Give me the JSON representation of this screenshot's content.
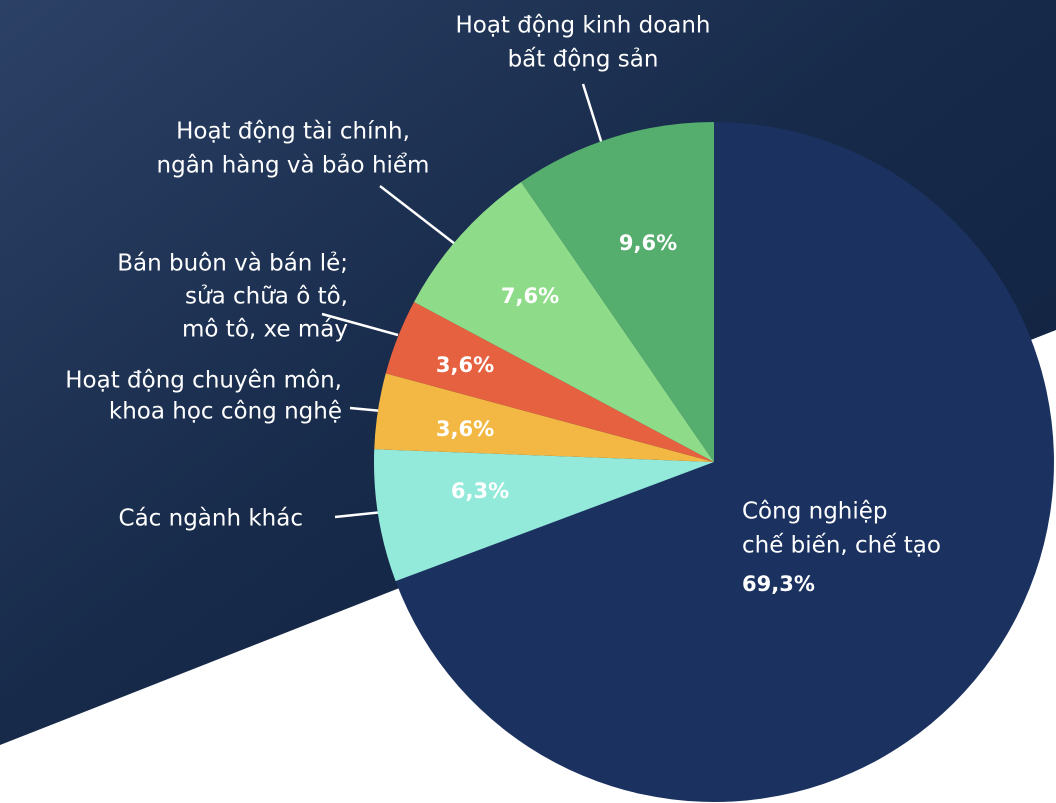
{
  "chart_data": {
    "type": "pie",
    "categories": [
      [
        "Công nghiệp",
        "chế biến, chế tạo"
      ],
      [
        "Các ngành khác"
      ],
      [
        "Hoạt động chuyên môn,",
        "khoa học công nghệ"
      ],
      [
        "Bán buôn và bán lẻ;",
        "sửa chữa ô tô,",
        "mô tô, xe máy"
      ],
      [
        "Hoạt động tài chính,",
        "ngân hàng và bảo hiểm"
      ],
      [
        "Hoạt động kinh doanh",
        "bất động sản"
      ]
    ],
    "values": [
      69.3,
      6.3,
      3.6,
      3.6,
      7.6,
      9.6
    ],
    "value_labels": [
      "69,3%",
      "6,3%",
      "3,6%",
      "3,6%",
      "7,6%",
      "9,6%"
    ],
    "colors": [
      "#1b3260",
      "#93eadb",
      "#f2b843",
      "#e5613f",
      "#8edc8a",
      "#55ad6e"
    ]
  }
}
